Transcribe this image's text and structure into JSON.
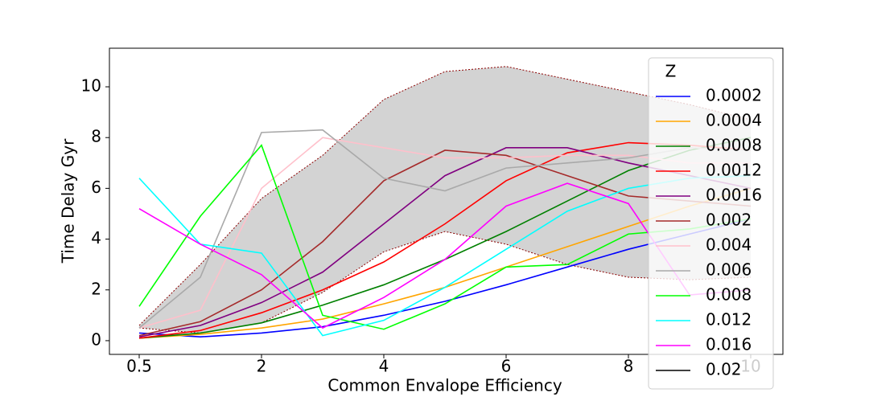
{
  "chart_data": {
    "type": "line",
    "xlabel": "Common Envalope Efficiency",
    "ylabel": "Time Delay Gyr",
    "categories": [
      "0.5",
      null,
      "2",
      null,
      "4",
      null,
      "6",
      null,
      "8",
      null,
      "10"
    ],
    "ylim": [
      -0.54,
      11.52
    ],
    "yticks": [
      0,
      2,
      4,
      6,
      8,
      10
    ],
    "band": {
      "upper": [
        0.6,
        3.0,
        5.6,
        7.3,
        9.5,
        10.6,
        10.8,
        10.3,
        9.8,
        9.3,
        8.7
      ],
      "lower": [
        0.5,
        0.3,
        0.7,
        1.9,
        3.5,
        4.3,
        3.8,
        3.0,
        2.5,
        2.4,
        2.5
      ],
      "color": "#d3d3d3",
      "edge_color": "#8b0000"
    },
    "legend_title": "Z",
    "legend": "upper right",
    "series": [
      {
        "name": "0.0002",
        "color": "#0000ff",
        "values": [
          0.3,
          0.15,
          0.3,
          0.55,
          1.0,
          1.55,
          2.2,
          2.9,
          3.6,
          4.2,
          4.8
        ]
      },
      {
        "name": "0.0004",
        "color": "#ffa500",
        "values": [
          0.1,
          0.25,
          0.5,
          0.85,
          1.45,
          2.1,
          2.9,
          3.7,
          4.5,
          5.3,
          6.0
        ]
      },
      {
        "name": "0.0008",
        "color": "#008000",
        "values": [
          0.1,
          0.3,
          0.7,
          1.4,
          2.2,
          3.2,
          4.3,
          5.5,
          6.7,
          7.5,
          8.0
        ]
      },
      {
        "name": "0.0012",
        "color": "#ff0000",
        "values": [
          0.1,
          0.4,
          1.1,
          2.0,
          3.1,
          4.6,
          6.3,
          7.4,
          7.8,
          7.7,
          7.5
        ]
      },
      {
        "name": "0.0016",
        "color": "#800080",
        "values": [
          0.15,
          0.6,
          1.5,
          2.7,
          4.6,
          6.5,
          7.6,
          7.6,
          7.0,
          6.5,
          6.0
        ]
      },
      {
        "name": "0.002",
        "color": "#a52a2a",
        "values": [
          0.2,
          0.75,
          2.0,
          3.9,
          6.3,
          7.5,
          7.3,
          6.5,
          5.7,
          5.5,
          5.3
        ]
      },
      {
        "name": "0.004",
        "color": "#ffc0cb",
        "values": [
          0.5,
          1.2,
          6.0,
          8.0,
          7.6,
          7.2,
          7.2,
          7.3,
          7.3,
          7.0,
          7.0
        ]
      },
      {
        "name": "0.006",
        "color": "#a9a9a9",
        "values": [
          0.5,
          2.5,
          8.2,
          8.3,
          6.4,
          5.9,
          6.8,
          7.0,
          7.2,
          7.6,
          7.5
        ]
      },
      {
        "name": "0.008",
        "color": "#00ff00",
        "values": [
          1.35,
          4.9,
          7.7,
          1.0,
          0.45,
          1.45,
          2.9,
          3.0,
          4.2,
          4.4,
          4.8
        ]
      },
      {
        "name": "0.012",
        "color": "#00ffff",
        "values": [
          6.4,
          3.8,
          3.45,
          0.2,
          0.8,
          2.1,
          3.6,
          5.1,
          6.0,
          6.4,
          6.5
        ]
      },
      {
        "name": "0.016",
        "color": "#ff00ff",
        "values": [
          5.2,
          3.8,
          2.6,
          0.5,
          1.7,
          3.2,
          5.3,
          6.2,
          5.4,
          1.8,
          2.0
        ]
      },
      {
        "name": "0.02",
        "color": "#000000",
        "values": [
          null,
          null,
          null,
          null,
          null,
          null,
          null,
          null,
          null,
          null,
          null
        ]
      }
    ]
  }
}
